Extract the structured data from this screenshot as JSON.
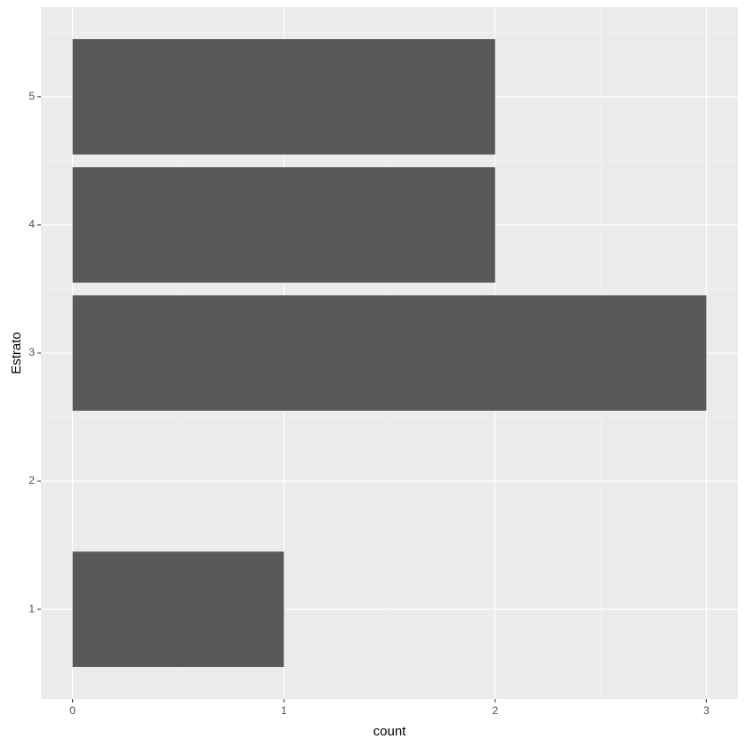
{
  "chart_data": {
    "type": "bar",
    "orientation": "horizontal",
    "x_label": "count",
    "y_label": "Estrato",
    "y": [
      1,
      3,
      4,
      5
    ],
    "values": [
      1,
      3,
      2,
      2
    ],
    "color": "#595959",
    "xlim": [
      -0.15,
      3.15
    ],
    "xticks": [
      0,
      1,
      2,
      3
    ],
    "ylim": [
      0.3,
      5.7
    ],
    "yticks": [
      1,
      2,
      3,
      4,
      5
    ],
    "grid": true
  }
}
